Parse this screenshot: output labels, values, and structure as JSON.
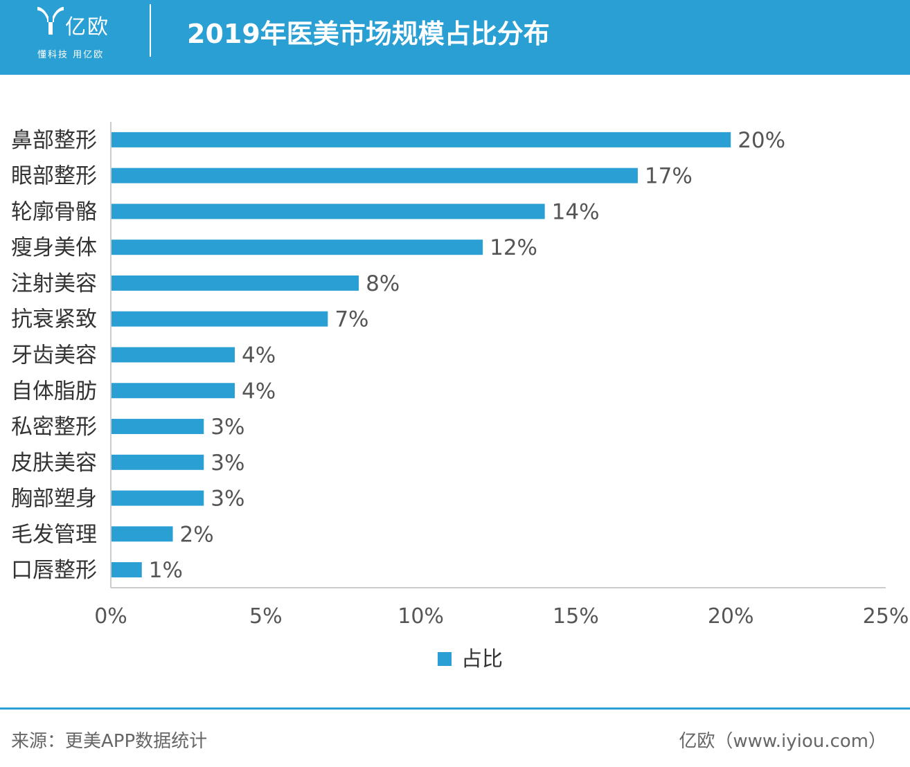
{
  "header": {
    "logo_text": "亿欧",
    "slogan": "懂科技 用亿欧",
    "title": "2019年医美市场规模占比分布",
    "background_color": "#2a9fd3"
  },
  "chart_data": {
    "type": "bar",
    "orientation": "horizontal",
    "title": "2019年医美市场规模占比分布",
    "categories": [
      "鼻部整形",
      "眼部整形",
      "轮廓骨骼",
      "瘦身美体",
      "注射美容",
      "抗衰紧致",
      "牙齿美容",
      "自体脂肪",
      "私密整形",
      "皮肤美容",
      "胸部塑身",
      "毛发管理",
      "口唇整形"
    ],
    "series": [
      {
        "name": "占比",
        "values": [
          20,
          17,
          14,
          12,
          8,
          7,
          4,
          4,
          3,
          3,
          3,
          2,
          1
        ],
        "color": "#2a9fd3"
      }
    ],
    "data_labels": [
      "20%",
      "17%",
      "14%",
      "12%",
      "8%",
      "7%",
      "4%",
      "4%",
      "3%",
      "3%",
      "3%",
      "2%",
      "1%"
    ],
    "xlim": [
      0,
      25
    ],
    "xticks": [
      0,
      5,
      10,
      15,
      20,
      25
    ],
    "xtick_labels": [
      "0%",
      "5%",
      "10%",
      "15%",
      "20%",
      "25%"
    ],
    "xlabel": "",
    "ylabel": "",
    "legend": {
      "label": "占比",
      "position": "bottom"
    },
    "grid": false
  },
  "footer": {
    "source": "来源：更美APP数据统计",
    "brand": "亿欧（www.iyiou.com）",
    "line_color": "#2a9fd3"
  }
}
